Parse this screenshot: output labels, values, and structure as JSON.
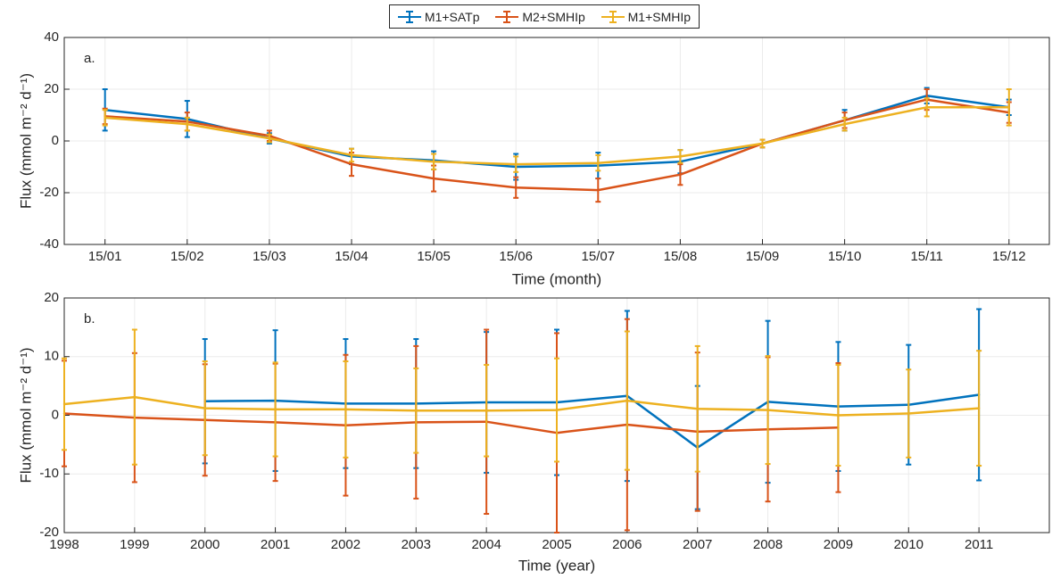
{
  "legend": [
    {
      "label": "M1+SATp",
      "color": "#0072BD"
    },
    {
      "label": "M2+SMHIp",
      "color": "#D95319"
    },
    {
      "label": "M1+SMHIp",
      "color": "#EDB120"
    }
  ],
  "chart_data": [
    {
      "type": "line",
      "panel_label": "a.",
      "xlabel": "Time (month)",
      "ylabel": "Flux (mmol m⁻² d⁻¹)",
      "x": [
        "15/01",
        "15/02",
        "15/03",
        "15/04",
        "15/05",
        "15/06",
        "15/07",
        "15/08",
        "15/09",
        "15/10",
        "15/11",
        "15/12"
      ],
      "ylim": [
        -40,
        40
      ],
      "yticks": [
        -40,
        -20,
        0,
        20,
        40
      ],
      "grid": true,
      "series": [
        {
          "name": "M1+SATp",
          "color": "#0072BD",
          "values": [
            12,
            8.5,
            1,
            -6,
            -7.5,
            -10,
            -9.5,
            -8,
            -1,
            8,
            17.5,
            13
          ],
          "err": [
            8,
            7,
            2,
            3,
            3.5,
            5,
            5,
            4.5,
            1.5,
            4,
            3,
            3
          ]
        },
        {
          "name": "M2+SMHIp",
          "color": "#D95319",
          "values": [
            9.5,
            7.5,
            2,
            -9,
            -14.5,
            -18,
            -19,
            -13,
            -1,
            8,
            16,
            11
          ],
          "err": [
            3,
            3.5,
            2,
            4.5,
            5,
            4,
            4.5,
            4,
            1.5,
            3,
            4,
            4
          ]
        },
        {
          "name": "M1+SMHIp",
          "color": "#EDB120",
          "values": [
            9,
            6.5,
            1,
            -5.5,
            -8,
            -9,
            -8.5,
            -6,
            -1,
            6.5,
            13,
            13
          ],
          "err": [
            3,
            2.5,
            1.5,
            2.5,
            3,
            3,
            3,
            2.5,
            1.5,
            2.5,
            3.5,
            7
          ]
        }
      ]
    },
    {
      "type": "line",
      "panel_label": "b.",
      "xlabel": "Time (year)",
      "ylabel": "Flux (mmol m⁻² d⁻¹)",
      "x": [
        1998,
        1999,
        2000,
        2001,
        2002,
        2003,
        2004,
        2005,
        2006,
        2007,
        2008,
        2009,
        2010,
        2011
      ],
      "xlim": [
        1998,
        2012
      ],
      "ylim": [
        -20,
        20
      ],
      "yticks": [
        -20,
        -10,
        0,
        10,
        20
      ],
      "grid": true,
      "series": [
        {
          "name": "M1+SATp",
          "color": "#0072BD",
          "values": [
            null,
            null,
            2.4,
            2.5,
            2,
            2,
            2.2,
            2.2,
            3.3,
            -5.5,
            2.3,
            1.5,
            1.8,
            3.5
          ],
          "err": [
            null,
            null,
            10.6,
            12,
            11,
            11,
            12,
            12.4,
            14.5,
            10.5,
            13.8,
            11,
            10.2,
            14.6
          ]
        },
        {
          "name": "M2+SMHIp",
          "color": "#D95319",
          "values": [
            0.3,
            -0.4,
            -0.8,
            -1.2,
            -1.7,
            -1.2,
            -1.1,
            -3,
            -1.6,
            -2.8,
            -2.4,
            -2.1,
            null,
            null
          ],
          "err": [
            9,
            11,
            9.5,
            10,
            12,
            13,
            15.7,
            17,
            18,
            13.5,
            12.3,
            11,
            null,
            null
          ]
        },
        {
          "name": "M1+SMHIp",
          "color": "#EDB120",
          "values": [
            1.9,
            3.1,
            1.2,
            1,
            1,
            0.8,
            0.8,
            0.9,
            2.5,
            1.1,
            0.9,
            0,
            0.3,
            1.2
          ],
          "err": [
            7.8,
            11.5,
            8,
            8,
            8.2,
            7.2,
            7.8,
            8.8,
            11.8,
            10.7,
            9.2,
            8.6,
            7.5,
            9.8
          ]
        }
      ]
    }
  ]
}
